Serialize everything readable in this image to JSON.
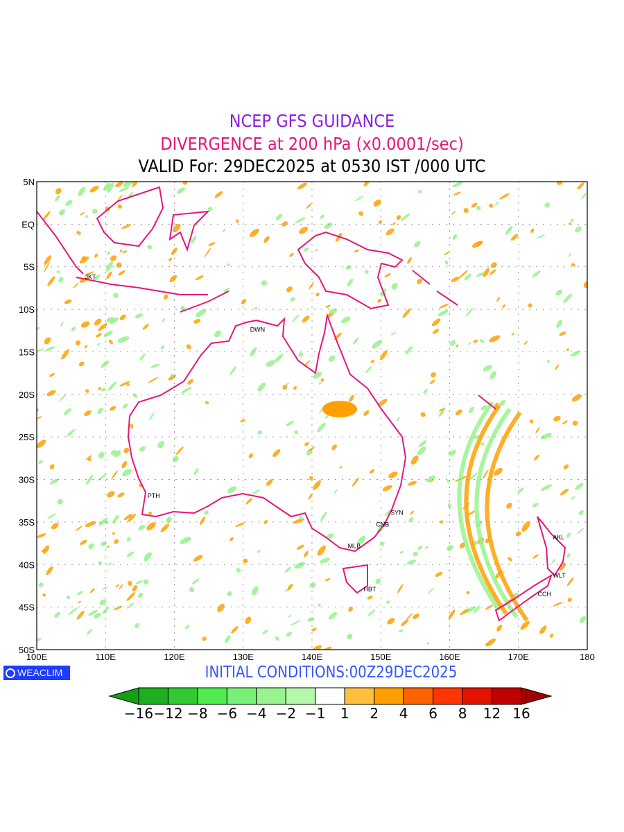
{
  "title": {
    "line1": "NCEP GFS GUIDANCE",
    "line2": "DIVERGENCE at 200 hPa (x0.0001/sec)",
    "line3": "VALID For: 29DEC2025 at 0530 IST /000 UTC"
  },
  "axes": {
    "lat_labels": [
      "5N",
      "EQ",
      "5S",
      "10S",
      "15S",
      "20S",
      "25S",
      "30S",
      "35S",
      "40S",
      "45S",
      "50S"
    ],
    "lon_labels": [
      "100E",
      "110E",
      "120E",
      "130E",
      "140E",
      "150E",
      "160E",
      "170E",
      "180"
    ]
  },
  "cities": [
    {
      "name": "JKT",
      "lon": 106.8,
      "lat": -6.2
    },
    {
      "name": "DWN",
      "lon": 130.8,
      "lat": -12.4
    },
    {
      "name": "PTH",
      "lon": 115.9,
      "lat": -31.9
    },
    {
      "name": "SYN",
      "lon": 151.2,
      "lat": -33.9
    },
    {
      "name": "CNB",
      "lon": 149.1,
      "lat": -35.3
    },
    {
      "name": "MLB",
      "lon": 145.0,
      "lat": -37.8
    },
    {
      "name": "HBT",
      "lon": 147.3,
      "lat": -42.9
    },
    {
      "name": "AKL",
      "lon": 174.8,
      "lat": -36.8
    },
    {
      "name": "WLT",
      "lon": 174.8,
      "lat": -41.3
    },
    {
      "name": "CCH",
      "lon": 172.6,
      "lat": -43.5
    }
  ],
  "footer": {
    "initial_conditions": "INITIAL CONDITIONS:00Z29DEC2025",
    "logo": "WEACLIM"
  },
  "colorbar": {
    "labels": [
      "−16",
      "−12",
      "−8",
      "−6",
      "−4",
      "−2",
      "−1",
      "1",
      "2",
      "4",
      "6",
      "8",
      "12",
      "16"
    ],
    "colors": [
      "#1fae1f",
      "#33c933",
      "#50ec50",
      "#78f178",
      "#99f38f",
      "#b5f8ad",
      "#ffffff",
      "#ffc040",
      "#ffa000",
      "#ff6300",
      "#ff3500",
      "#e21400",
      "#c00000"
    ],
    "low_color": "#13a013",
    "high_color": "#a00000"
  },
  "colors": {
    "coastline": "#e6157a",
    "positive": "#ffa000",
    "negative": "#99f38f"
  }
}
